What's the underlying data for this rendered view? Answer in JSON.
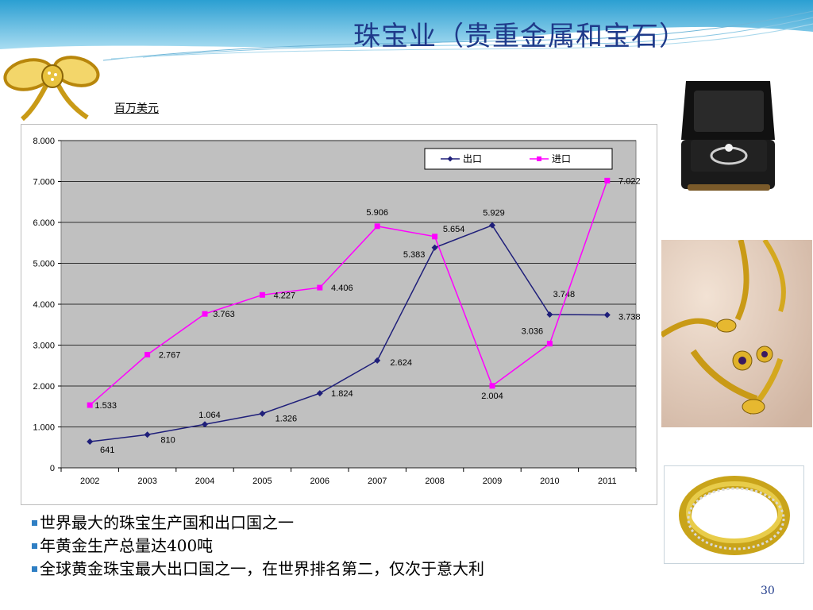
{
  "slide": {
    "title": "珠宝业（贵重金属和宝石）",
    "page_number": "30"
  },
  "unit_label": "百万美元",
  "bullets": [
    "世界最大的珠宝生产国和出口国之一",
    "年黄金生产总量达400吨",
    "全球黄金珠宝最大出口国之一，在世界排名第二，仅次于意大利"
  ],
  "images": {
    "bow": "gold-bow-brooch",
    "ring_box": "diamond-ring-in-black-box",
    "necklace": "gold-necklace-and-earrings",
    "ring": "gold-band-ring"
  },
  "colors": {
    "export": "#1f1f7a",
    "import": "#ff00ff",
    "plot_bg": "#c0c0c0",
    "title": "#1f3a8a"
  },
  "chart_data": {
    "type": "line",
    "categories": [
      "2002",
      "2003",
      "2004",
      "2005",
      "2006",
      "2007",
      "2008",
      "2009",
      "2010",
      "2011"
    ],
    "y_ticks": [
      "0",
      "1.000",
      "2.000",
      "3.000",
      "4.000",
      "5.000",
      "6.000",
      "7.000",
      "8.000"
    ],
    "ylim": [
      0,
      8000
    ],
    "grid": true,
    "legend_position": "top-right",
    "series": [
      {
        "name": "出口",
        "color": "#1f1f7a",
        "marker": "diamond",
        "values": [
          641,
          810,
          1064,
          1326,
          1824,
          2624,
          5383,
          5929,
          3748,
          3738
        ],
        "labels": [
          "641",
          "810",
          "1.064",
          "1.326",
          "1.824",
          "2.624",
          "5.383",
          "5.929",
          "3.748",
          "3.738"
        ]
      },
      {
        "name": "进口",
        "color": "#ff00ff",
        "marker": "square",
        "values": [
          1533,
          2767,
          3763,
          4227,
          4406,
          5906,
          5654,
          2004,
          3036,
          7022
        ],
        "labels": [
          "1.533",
          "2.767",
          "3.763",
          "4.227",
          "4.406",
          "5.906",
          "5.654",
          "2.004",
          "3.036",
          "7.022"
        ]
      }
    ]
  }
}
